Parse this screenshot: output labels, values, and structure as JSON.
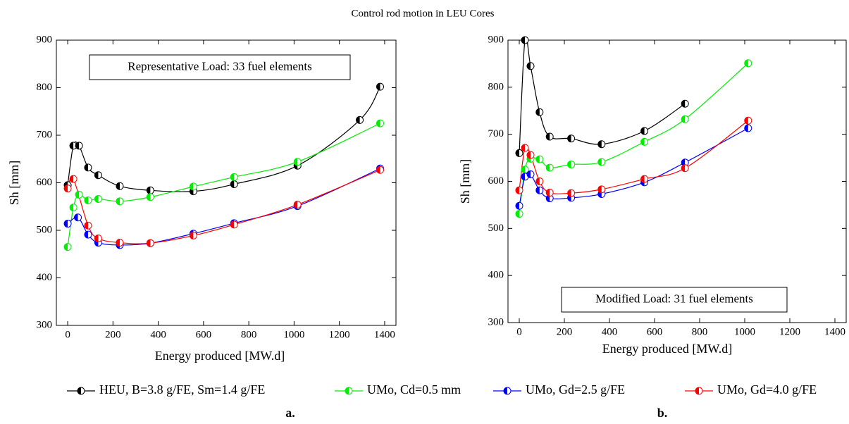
{
  "chart_data": [
    {
      "type": "line",
      "title": "Control rod motion in LEU Cores",
      "label": "a.",
      "annotation": "Representative Load: 33 fuel elements",
      "x_label": "Energy produced [MW.d]",
      "y_label": "Sh [mm]",
      "xlim": [
        -50,
        1450
      ],
      "ylim": [
        300,
        900
      ],
      "xticks": [
        0,
        200,
        400,
        600,
        800,
        1000,
        1200,
        1400
      ],
      "yticks": [
        300,
        400,
        500,
        600,
        700,
        800,
        900
      ],
      "series": [
        {
          "name": "HEU, B=3.8 g/FE, Sm=1.4 g/FE",
          "color": "#000000",
          "x": [
            0,
            25,
            50,
            90,
            135,
            230,
            365,
            555,
            735,
            1015,
            1290,
            1380
          ],
          "values": [
            595,
            678,
            678,
            632,
            616,
            593,
            584,
            582,
            597,
            636,
            732,
            802
          ]
        },
        {
          "name": "UMo, Cd=0.5 mm",
          "color": "#00ee00",
          "x": [
            0,
            25,
            50,
            90,
            135,
            230,
            365,
            555,
            735,
            1015,
            1380
          ],
          "values": [
            465,
            548,
            575,
            563,
            566,
            561,
            570,
            592,
            612,
            644,
            725
          ]
        },
        {
          "name": "UMo, Gd=2.5 g/FE",
          "color": "#0000ff",
          "x": [
            0,
            45,
            90,
            135,
            230,
            365,
            555,
            735,
            1015,
            1380
          ],
          "values": [
            514,
            527,
            491,
            474,
            469,
            473,
            493,
            515,
            551,
            630
          ]
        },
        {
          "name": "UMo, Gd=4.0 g/FE",
          "color": "#ff0000",
          "x": [
            0,
            25,
            90,
            135,
            230,
            365,
            555,
            735,
            1015,
            1380
          ],
          "values": [
            588,
            608,
            510,
            483,
            474,
            473,
            489,
            512,
            554,
            627
          ]
        }
      ]
    },
    {
      "type": "line",
      "label": "b.",
      "annotation": "Modified Load: 31 fuel elements",
      "x_label": "Energy produced [MW.d]",
      "y_label": "Sh [mm]",
      "xlim": [
        -50,
        1450
      ],
      "ylim": [
        300,
        900
      ],
      "xticks": [
        0,
        200,
        400,
        600,
        800,
        1000,
        1200,
        1400
      ],
      "yticks": [
        300,
        400,
        500,
        600,
        700,
        800,
        900
      ],
      "series": [
        {
          "color": "#000000",
          "x": [
            0,
            25,
            50,
            90,
            135,
            230,
            365,
            555,
            735
          ],
          "values": [
            660,
            900,
            845,
            747,
            695,
            691,
            679,
            707,
            765
          ]
        },
        {
          "color": "#00ee00",
          "x": [
            0,
            25,
            50,
            90,
            135,
            230,
            365,
            555,
            735,
            1015
          ],
          "values": [
            531,
            625,
            648,
            647,
            629,
            636,
            641,
            684,
            732,
            851
          ]
        },
        {
          "color": "#0000ff",
          "x": [
            0,
            25,
            50,
            90,
            135,
            230,
            365,
            555,
            735,
            1015
          ],
          "values": [
            548,
            610,
            615,
            581,
            564,
            565,
            573,
            598,
            640,
            713
          ]
        },
        {
          "color": "#ff0000",
          "x": [
            0,
            25,
            50,
            90,
            135,
            230,
            365,
            555,
            735,
            1015
          ],
          "values": [
            581,
            671,
            656,
            600,
            576,
            575,
            583,
            605,
            628,
            729
          ]
        }
      ]
    }
  ]
}
